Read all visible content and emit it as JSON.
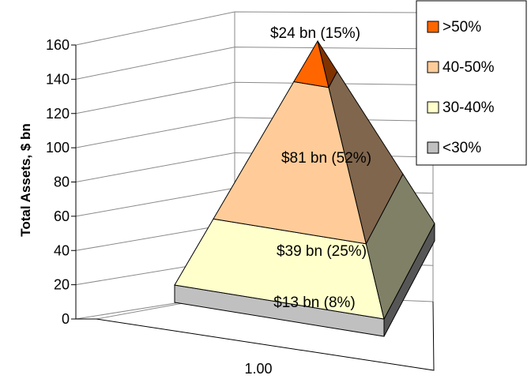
{
  "chart_data": {
    "type": "pyramid",
    "title": "",
    "ylabel": "Total Assets, $ bn",
    "xlabel": "",
    "ylim": [
      0,
      160
    ],
    "yticks": [
      "0",
      "20",
      "40",
      "60",
      "80",
      "100",
      "120",
      "140",
      "160"
    ],
    "xticks": [
      "1.00"
    ],
    "grid": true,
    "legend_position": "top-right",
    "segments": [
      {
        "name": "<30%",
        "value": 13,
        "label": "$13  bn (8%)",
        "color": "#c0c0c0"
      },
      {
        "name": "30-40%",
        "value": 39,
        "label": "$39  bn (25%)",
        "color": "#ffffcc"
      },
      {
        "name": "40-50%",
        "value": 81,
        "label": "$81  bn (52%)",
        "color": "#ffcc99"
      },
      {
        "name": ">50%",
        "value": 24,
        "label": "$24 bn (15%)",
        "color": "#ff6600"
      }
    ],
    "legend": [
      {
        "name": ">50%",
        "color": "#ff6600"
      },
      {
        "name": "40-50%",
        "color": "#ffcc99"
      },
      {
        "name": "30-40%",
        "color": "#ffffcc"
      },
      {
        "name": "<30%",
        "color": "#c0c0c0"
      }
    ]
  }
}
